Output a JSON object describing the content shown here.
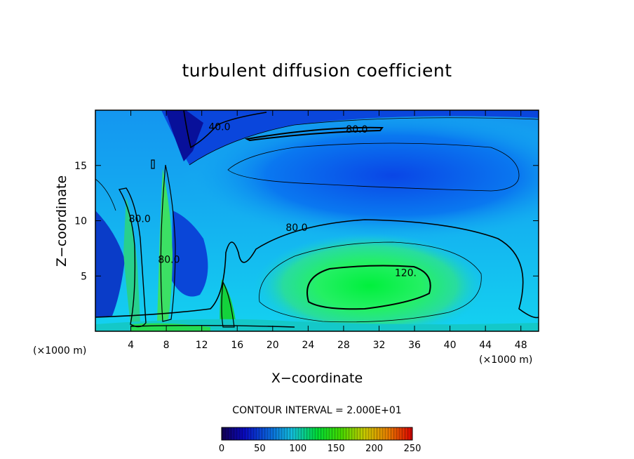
{
  "chart_data": {
    "type": "heatmap",
    "title": "turbulent diffusion coefficient",
    "xlabel": "X−coordinate",
    "ylabel": "Z−coordinate",
    "x_unit": "(×1000 m)",
    "y_unit": "(×1000 m)",
    "xlim": [
      0,
      50
    ],
    "ylim": [
      0,
      20
    ],
    "xticks": [
      4,
      8,
      12,
      16,
      20,
      24,
      28,
      32,
      36,
      40,
      44,
      48
    ],
    "yticks": [
      5,
      10,
      15
    ],
    "contour_interval_text": "CONTOUR INTERVAL = 2.000E+01",
    "contour_interval": 20,
    "contour_labels": [
      {
        "text": "40.0",
        "x": 14.0,
        "y": 18.5
      },
      {
        "text": "80.0",
        "x": 29.5,
        "y": 18.3
      },
      {
        "text": "80.0",
        "x": 22.7,
        "y": 9.4
      },
      {
        "text": "80.0",
        "x": 5.0,
        "y": 10.2
      },
      {
        "text": "80.0",
        "x": 8.3,
        "y": 6.5
      },
      {
        "text": "120.",
        "x": 35.0,
        "y": 5.3
      }
    ],
    "colorbar": {
      "min": 0,
      "max": 250,
      "ticks": [
        0,
        50,
        100,
        150,
        200,
        250
      ],
      "colors": [
        "#14005a",
        "#0a0ad2",
        "#0a6ef0",
        "#14d2f0",
        "#00f03c",
        "#46f000",
        "#dcdc00",
        "#ff8c00",
        "#f00000"
      ]
    },
    "field_description_values": {
      "background": 70,
      "core_max": 135,
      "upper_min": 20
    }
  }
}
